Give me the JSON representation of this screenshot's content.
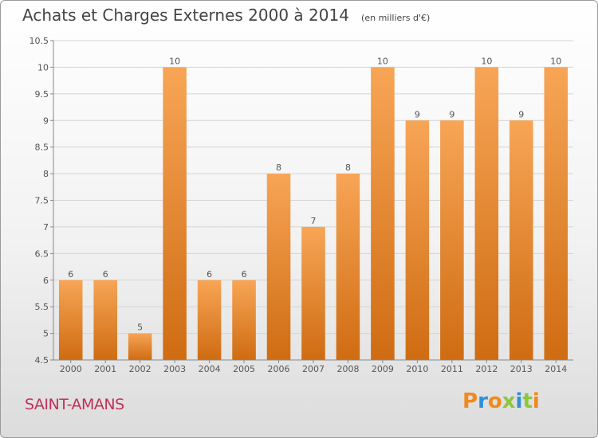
{
  "header": {
    "title": "Achats et Charges Externes 2000 à 2014",
    "unit": "(en milliers d'€)"
  },
  "footer": {
    "place": "SAINT-AMANS",
    "logo": "Proxiti"
  },
  "colors": {
    "bar_top": "#f7a556",
    "bar_bottom": "#cf6c12",
    "place": "#c0315c",
    "logo_letters": [
      "#f08a1c",
      "#2e8fd8",
      "#f08a1c",
      "#8cc63f",
      "#2e8fd8",
      "#8cc63f",
      "#f08a1c"
    ]
  },
  "chart_data": {
    "type": "bar",
    "title": "Achats et Charges Externes 2000 à 2014",
    "subtitle": "(en milliers d'€)",
    "categories": [
      "2000",
      "2001",
      "2002",
      "2003",
      "2004",
      "2005",
      "2006",
      "2007",
      "2008",
      "2009",
      "2010",
      "2011",
      "2012",
      "2013",
      "2014"
    ],
    "values": [
      6,
      6,
      5,
      10,
      6,
      6,
      8,
      7,
      8,
      10,
      9,
      9,
      10,
      9,
      10
    ],
    "value_labels": [
      "6",
      "6",
      "5",
      "10",
      "6",
      "6",
      "8",
      "7",
      "8",
      "10",
      "9",
      "9",
      "10",
      "9",
      "10"
    ],
    "ylim": [
      4.5,
      10.5
    ],
    "yticks": [
      "4.5",
      "5",
      "5.5",
      "6",
      "6.5",
      "7",
      "7.5",
      "8",
      "8.5",
      "9",
      "9.5",
      "10",
      "10.5"
    ],
    "grid": true,
    "legend": "none"
  }
}
